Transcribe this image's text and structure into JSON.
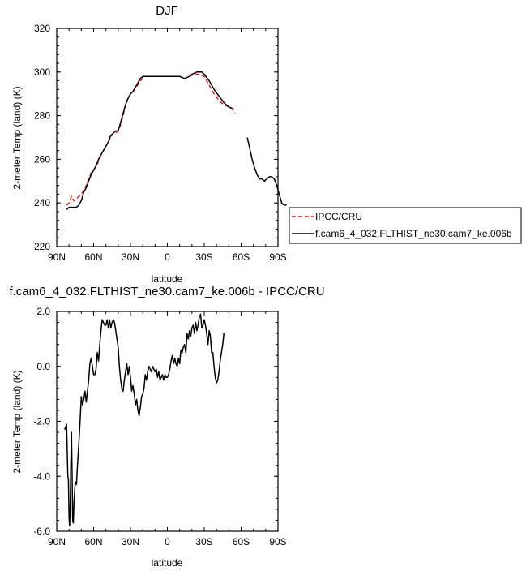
{
  "chart_data": [
    {
      "type": "line",
      "title": "DJF",
      "xlabel": "latitude",
      "ylabel": "2-meter Temp (land) (K)",
      "ylim": [
        220,
        320
      ],
      "xlim": [
        90,
        -90
      ],
      "x_ticks": [
        90,
        60,
        30,
        0,
        -30,
        -60,
        -90
      ],
      "x_tick_labels": [
        "90N",
        "60N",
        "30N",
        "0",
        "30S",
        "60S",
        "90S"
      ],
      "y_ticks": [
        220,
        240,
        260,
        280,
        300,
        320
      ],
      "y_tick_labels": [
        "220",
        "240",
        "260",
        "280",
        "300",
        "320"
      ],
      "grid": false,
      "legend_position": "right",
      "series": [
        {
          "name": "IPCC/CRU",
          "color": "#e41a1c",
          "dash": "dashed",
          "points": [
            [
              82,
              239
            ],
            [
              80,
              240
            ],
            [
              78,
              243
            ],
            [
              76,
              241
            ],
            [
              74,
              242
            ],
            [
              72,
              243
            ],
            [
              70,
              244
            ],
            [
              68,
              246
            ],
            [
              66,
              248
            ],
            [
              64,
              251
            ],
            [
              62,
              254
            ],
            [
              60,
              255
            ],
            [
              58,
              257
            ],
            [
              56,
              259
            ],
            [
              54,
              262
            ],
            [
              52,
              264
            ],
            [
              50,
              266
            ],
            [
              48,
              268
            ],
            [
              46,
              270
            ],
            [
              44,
              272
            ],
            [
              42,
              272
            ],
            [
              40,
              273
            ],
            [
              38,
              276
            ],
            [
              36,
              280
            ],
            [
              34,
              285
            ],
            [
              32,
              288
            ],
            [
              30,
              290
            ],
            [
              28,
              291
            ],
            [
              26,
              293
            ],
            [
              24,
              294
            ],
            [
              22,
              296
            ],
            [
              20,
              297
            ],
            [
              18,
              298
            ],
            [
              16,
              298
            ],
            [
              14,
              298
            ],
            [
              10,
              298
            ],
            [
              6,
              298
            ],
            [
              2,
              298
            ],
            [
              -2,
              298
            ],
            [
              -6,
              298
            ],
            [
              -10,
              298
            ],
            [
              -14,
              297
            ],
            [
              -18,
              298
            ],
            [
              -22,
              299
            ],
            [
              -26,
              299
            ],
            [
              -30,
              298
            ],
            [
              -34,
              294
            ],
            [
              -38,
              290
            ],
            [
              -42,
              287
            ],
            [
              -46,
              285
            ],
            [
              -50,
              284
            ],
            [
              -53,
              283
            ],
            [
              -55,
              281
            ]
          ]
        },
        {
          "name": "f.cam6_4_032.FLTHIST_ne30.cam7_ke.006b",
          "color": "#000000",
          "dash": "solid",
          "points": [
            [
              82,
              237
            ],
            [
              80,
              238
            ],
            [
              78,
              238
            ],
            [
              76,
              238
            ],
            [
              74,
              238
            ],
            [
              72,
              239
            ],
            [
              70,
              241
            ],
            [
              68,
              245
            ],
            [
              66,
              247
            ],
            [
              64,
              250
            ],
            [
              62,
              253
            ],
            [
              60,
              255
            ],
            [
              58,
              257
            ],
            [
              56,
              260
            ],
            [
              54,
              262
            ],
            [
              52,
              264
            ],
            [
              50,
              266
            ],
            [
              48,
              268
            ],
            [
              46,
              271
            ],
            [
              44,
              272
            ],
            [
              42,
              273
            ],
            [
              40,
              273
            ],
            [
              38,
              277
            ],
            [
              36,
              281
            ],
            [
              34,
              285
            ],
            [
              32,
              288
            ],
            [
              30,
              290
            ],
            [
              28,
              291
            ],
            [
              26,
              293
            ],
            [
              24,
              295
            ],
            [
              22,
              297
            ],
            [
              20,
              298
            ],
            [
              18,
              298
            ],
            [
              16,
              298
            ],
            [
              14,
              298
            ],
            [
              10,
              298
            ],
            [
              6,
              298
            ],
            [
              2,
              298
            ],
            [
              -2,
              298
            ],
            [
              -6,
              298
            ],
            [
              -10,
              298
            ],
            [
              -14,
              297
            ],
            [
              -18,
              298
            ],
            [
              -20,
              299
            ],
            [
              -24,
              300
            ],
            [
              -28,
              300
            ],
            [
              -30,
              299
            ],
            [
              -34,
              296
            ],
            [
              -38,
              292
            ],
            [
              -42,
              289
            ],
            [
              -46,
              286
            ],
            [
              -50,
              284
            ],
            [
              -54,
              283
            ],
            null,
            [
              -65,
              270
            ],
            [
              -67,
              265
            ],
            [
              -69,
              260
            ],
            [
              -71,
              256
            ],
            [
              -73,
              253
            ],
            [
              -75,
              251
            ],
            [
              -77,
              251
            ],
            [
              -79,
              250
            ],
            [
              -81,
              251
            ],
            [
              -83,
              252
            ],
            [
              -85,
              252
            ],
            [
              -87,
              251
            ],
            [
              -89,
              248
            ],
            [
              -91,
              244
            ],
            [
              -93,
              240
            ],
            [
              -95,
              239
            ],
            [
              -97,
              239
            ]
          ]
        }
      ]
    },
    {
      "type": "line",
      "title": "f.cam6_4_032.FLTHIST_ne30.cam7_ke.006b - IPCC/CRU",
      "xlabel": "latitude",
      "ylabel": "2-meter Temp (land) (K)",
      "ylim": [
        -6,
        2
      ],
      "xlim": [
        90,
        -90
      ],
      "x_ticks": [
        90,
        60,
        30,
        0,
        -30,
        -60,
        -90
      ],
      "x_tick_labels": [
        "90N",
        "60N",
        "30N",
        "0",
        "30S",
        "60S",
        "90S"
      ],
      "y_ticks": [
        -6,
        -4,
        -2,
        0,
        2
      ],
      "y_tick_labels": [
        "-6.0",
        "-4.0",
        "-2.0",
        "0.0",
        "2.0"
      ],
      "grid": false,
      "series": [
        {
          "color": "#000000",
          "dash": "solid",
          "points": [
            [
              83.5,
              -2.3
            ],
            [
              83,
              -2.2
            ],
            [
              82.5,
              -2.3
            ],
            [
              82,
              -2.1
            ],
            [
              81.5,
              -3.0
            ],
            [
              81,
              -4.0
            ],
            [
              80.5,
              -4.1
            ],
            [
              80,
              -5.5
            ],
            [
              79.5,
              -5.8
            ],
            [
              79,
              -5.0
            ],
            [
              78.5,
              -3.5
            ],
            [
              78,
              -2.4
            ],
            [
              77.5,
              -4.0
            ],
            [
              77,
              -5.6
            ],
            [
              76.5,
              -5.7
            ],
            [
              76,
              -5.0
            ],
            [
              75,
              -4.2
            ],
            [
              74,
              -4.3
            ],
            [
              73,
              -3.5
            ],
            [
              72,
              -2.8
            ],
            [
              71,
              -2.0
            ],
            [
              70,
              -1.1
            ],
            [
              69,
              -1.4
            ],
            [
              68,
              -1.2
            ],
            [
              67,
              -0.9
            ],
            [
              66,
              -1.3
            ],
            [
              65,
              -0.9
            ],
            [
              64,
              -0.5
            ],
            [
              63,
              0.1
            ],
            [
              62,
              0.3
            ],
            [
              61,
              0.0
            ],
            [
              60,
              -0.3
            ],
            [
              59,
              -0.3
            ],
            [
              58,
              -0.1
            ],
            [
              57,
              0.5
            ],
            [
              56,
              0.2
            ],
            [
              55,
              0.8
            ],
            [
              54,
              1.3
            ],
            [
              53,
              1.7
            ],
            [
              52,
              1.6
            ],
            [
              51,
              1.5
            ],
            [
              50,
              1.5
            ],
            [
              49,
              1.7
            ],
            [
              48,
              1.4
            ],
            [
              47,
              1.7
            ],
            [
              46,
              1.4
            ],
            [
              45,
              1.6
            ],
            [
              44,
              1.7
            ],
            [
              43,
              1.6
            ],
            [
              42,
              1.3
            ],
            [
              41,
              1.0
            ],
            [
              40,
              0.7
            ],
            [
              39,
              0.0
            ],
            [
              38,
              -0.5
            ],
            [
              37,
              -0.8
            ],
            [
              36,
              -0.9
            ],
            [
              35,
              -0.5
            ],
            [
              34,
              -0.2
            ],
            [
              33,
              0.1
            ],
            [
              32,
              -0.3
            ],
            [
              31,
              0.0
            ],
            [
              30,
              -0.4
            ],
            [
              29,
              -0.9
            ],
            [
              28,
              -0.7
            ],
            [
              27,
              -1.0
            ],
            [
              26,
              -1.4
            ],
            [
              25,
              -1.2
            ],
            [
              24,
              -1.6
            ],
            [
              23,
              -1.8
            ],
            [
              22,
              -1.5
            ],
            [
              21,
              -1.1
            ],
            [
              20,
              -1.0
            ],
            [
              19,
              -0.8
            ],
            [
              18,
              -0.3
            ],
            [
              17,
              -0.5
            ],
            [
              16,
              -0.2
            ],
            [
              15,
              0.0
            ],
            [
              14,
              -0.1
            ],
            [
              13,
              -0.2
            ],
            [
              12,
              0.0
            ],
            [
              11,
              -0.1
            ],
            [
              10,
              -0.2
            ],
            [
              9,
              -0.1
            ],
            [
              8,
              -0.4
            ],
            [
              7,
              -0.2
            ],
            [
              6,
              -0.5
            ],
            [
              5,
              -0.4
            ],
            [
              4,
              -0.3
            ],
            [
              3,
              -0.5
            ],
            [
              2,
              -0.3
            ],
            [
              1,
              -0.4
            ],
            [
              0,
              -0.4
            ],
            [
              -1,
              -0.3
            ],
            [
              -2,
              -0.1
            ],
            [
              -3,
              0.2
            ],
            [
              -4,
              0.4
            ],
            [
              -5,
              0.1
            ],
            [
              -6,
              0.3
            ],
            [
              -7,
              0.1
            ],
            [
              -8,
              0.0
            ],
            [
              -9,
              0.3
            ],
            [
              -10,
              0.1
            ],
            [
              -11,
              0.6
            ],
            [
              -12,
              0.5
            ],
            [
              -13,
              0.7
            ],
            [
              -14,
              0.8
            ],
            [
              -15,
              0.5
            ],
            [
              -16,
              1.2
            ],
            [
              -17,
              1.0
            ],
            [
              -18,
              1.3
            ],
            [
              -19,
              1.1
            ],
            [
              -20,
              1.4
            ],
            [
              -21,
              1.5
            ],
            [
              -22,
              1.2
            ],
            [
              -23,
              1.6
            ],
            [
              -24,
              1.3
            ],
            [
              -25,
              1.5
            ],
            [
              -26,
              1.8
            ],
            [
              -27,
              1.9
            ],
            [
              -28,
              1.4
            ],
            [
              -29,
              1.5
            ],
            [
              -30,
              1.7
            ],
            [
              -31,
              1.5
            ],
            [
              -32,
              1.2
            ],
            [
              -33,
              0.8
            ],
            [
              -34,
              1.3
            ],
            [
              -35,
              1.1
            ],
            [
              -36,
              0.5
            ],
            [
              -37,
              0.5
            ],
            [
              -38,
              0.0
            ],
            [
              -39,
              -0.4
            ],
            [
              -40,
              -0.6
            ],
            [
              -41,
              -0.5
            ],
            [
              -42,
              -0.2
            ],
            [
              -43,
              0.2
            ],
            [
              -44,
              0.5
            ],
            [
              -45,
              0.8
            ],
            [
              -46,
              1.2
            ]
          ]
        }
      ]
    }
  ]
}
